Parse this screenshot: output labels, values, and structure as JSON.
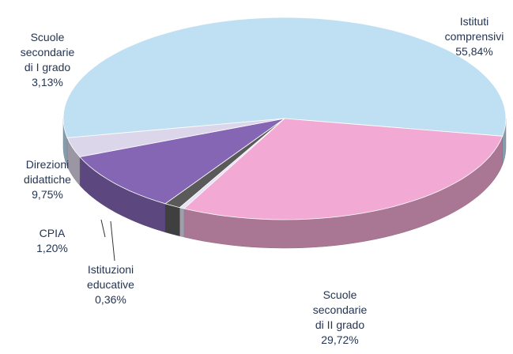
{
  "chart_data": {
    "type": "pie",
    "categories": [
      "Istituti comprensivi",
      "Scuole secondarie di II grado",
      "Istituzioni educative",
      "CPIA",
      "Direzioni didattiche",
      "Scuole secondarie di I grado"
    ],
    "values": [
      55.84,
      29.72,
      0.36,
      1.2,
      9.75,
      3.13
    ],
    "value_labels": [
      "55,84%",
      "29,72%",
      "0,36%",
      "1,20%",
      "9,75%",
      "3,13%"
    ],
    "colors": [
      "#bfdff3",
      "#f2a9d4",
      "#e6e2f5",
      "#5a5a5a",
      "#8466b4",
      "#dcd6ea"
    ]
  }
}
